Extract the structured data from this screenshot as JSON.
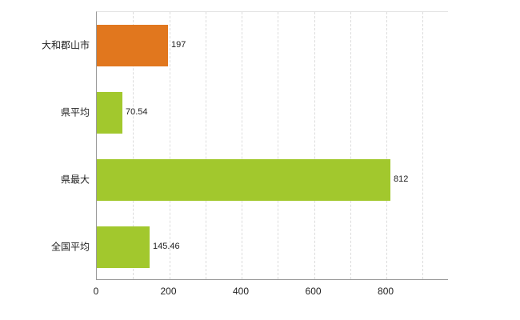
{
  "chart_data": {
    "type": "bar",
    "orientation": "horizontal",
    "title": "",
    "categories": [
      "大和郡山市",
      "県平均",
      "県最大",
      "全国平均"
    ],
    "values": [
      197,
      70.54,
      812,
      145.46
    ],
    "value_labels": [
      "197",
      "70.54",
      "812",
      "145.46"
    ],
    "bar_colors": [
      "#e1771e",
      "#a2c82d",
      "#a2c82d",
      "#a2c82d"
    ],
    "xlabel": "",
    "ylabel": "",
    "xlim": [
      0,
      970
    ],
    "xticks": [
      0,
      200,
      400,
      600,
      800
    ],
    "grid_interval": 100,
    "grid": true,
    "legend": "none",
    "colors": {
      "highlight_bar": "#e1771e",
      "default_bar": "#a2c82d",
      "axis_line": "#9a9a9a",
      "gridline": "#dcdcdc",
      "text": "#222222"
    }
  }
}
